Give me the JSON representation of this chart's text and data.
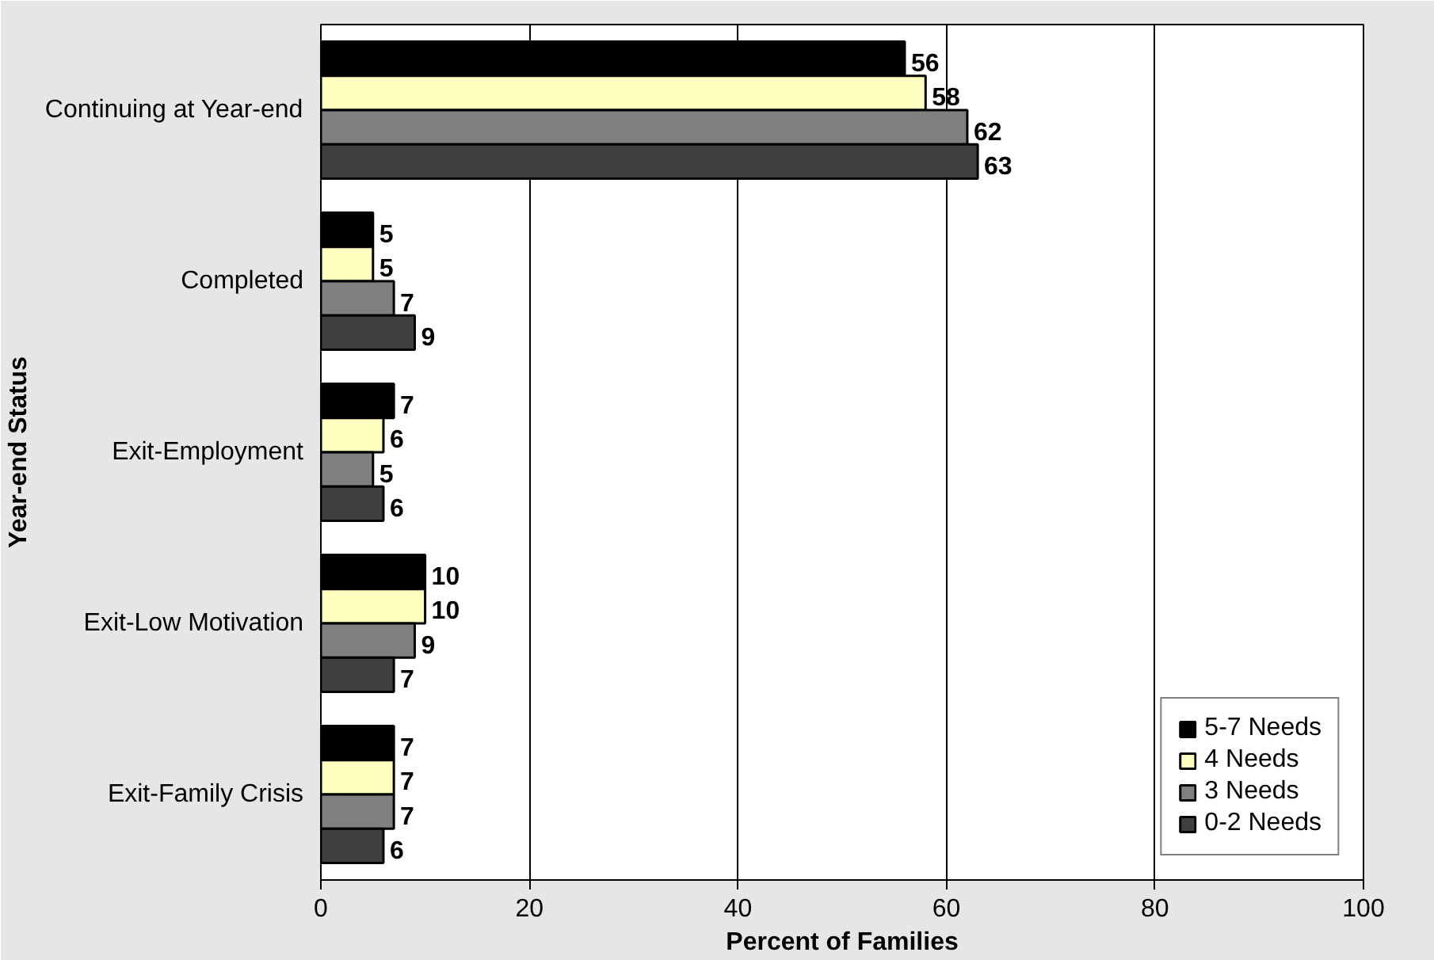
{
  "chart_data": {
    "type": "bar",
    "orientation": "horizontal",
    "ylabel": "Year-end Status",
    "xlabel": "Percent of Families",
    "categories": [
      "Continuing at Year-end",
      "Completed",
      "Exit-Employment",
      "Exit-Low Motivation",
      "Exit-Family Crisis"
    ],
    "series": [
      {
        "name": "5-7 Needs",
        "color": "#000000",
        "values": [
          56,
          5,
          7,
          10,
          7
        ]
      },
      {
        "name": "4 Needs",
        "color": "#ffffc0",
        "values": [
          58,
          5,
          6,
          10,
          7
        ]
      },
      {
        "name": "3 Needs",
        "color": "#808080",
        "values": [
          62,
          7,
          5,
          9,
          7
        ]
      },
      {
        "name": "0-2 Needs",
        "color": "#404040",
        "values": [
          63,
          9,
          6,
          7,
          6
        ]
      }
    ],
    "xlim": [
      0,
      100
    ],
    "xticks": [
      0,
      20,
      40,
      60,
      80,
      100
    ],
    "grid": "x",
    "legend": "bottom right",
    "data_labels": true
  }
}
